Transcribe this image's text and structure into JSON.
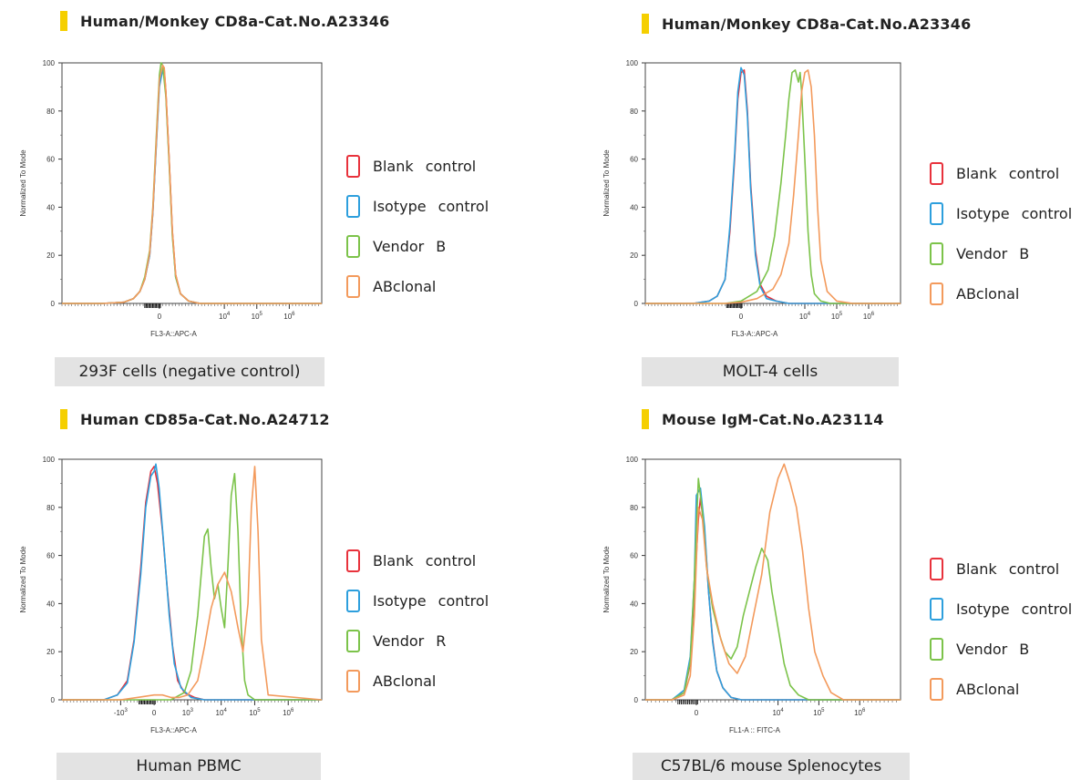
{
  "panels": [
    {
      "title": "Human/Monkey CD8a-Cat.No.A23346",
      "caption": "293F cells (negative control)",
      "legend": [
        {
          "label": "Blank  control",
          "color": "#e8323c"
        },
        {
          "label": "Isotype  control",
          "color": "#2d9fdd"
        },
        {
          "label": "Vendor B",
          "color": "#7cc34a"
        },
        {
          "label": "ABclonal",
          "color": "#f39a5c"
        }
      ]
    },
    {
      "title": "Human/Monkey CD8a-Cat.No.A23346",
      "caption": "MOLT-4 cells",
      "legend": [
        {
          "label": "Blank  control",
          "color": "#e8323c"
        },
        {
          "label": "Isotype  control",
          "color": "#2d9fdd"
        },
        {
          "label": "Vendor B",
          "color": "#7cc34a"
        },
        {
          "label": "ABclonal",
          "color": "#f39a5c"
        }
      ]
    },
    {
      "title": "Human CD85a-Cat.No.A24712",
      "caption": "Human PBMC",
      "legend": [
        {
          "label": "Blank  control",
          "color": "#e8323c"
        },
        {
          "label": "Isotype  control",
          "color": "#2d9fdd"
        },
        {
          "label": "Vendor R",
          "color": "#7cc34a"
        },
        {
          "label": "ABclonal",
          "color": "#f39a5c"
        }
      ]
    },
    {
      "title": "Mouse IgM-Cat.No.A23114",
      "caption": "C57BL/6 mouse Splenocytes",
      "legend": [
        {
          "label": "Blank  control",
          "color": "#e8323c"
        },
        {
          "label": "Isotype  control",
          "color": "#2d9fdd"
        },
        {
          "label": "Vendor B",
          "color": "#7cc34a"
        },
        {
          "label": "ABclonal",
          "color": "#f39a5c"
        }
      ]
    }
  ],
  "chart_data": [
    {
      "type": "line",
      "xlabel": "FL3-A::APC-A",
      "ylabel": "Normalized To Mode",
      "ylim": [
        0,
        100
      ],
      "xlim": [
        -0.6,
        1.0
      ],
      "xticks": [
        {
          "pos": 0,
          "label": "0"
        },
        {
          "pos": 0.4,
          "label": "10^4"
        },
        {
          "pos": 0.6,
          "label": "10^5"
        },
        {
          "pos": 0.8,
          "label": "10^6"
        }
      ],
      "yticks": [
        0,
        20,
        40,
        60,
        80,
        100
      ],
      "series": [
        {
          "color": "#e8323c",
          "x": [
            -0.6,
            -0.35,
            -0.22,
            -0.16,
            -0.12,
            -0.09,
            -0.06,
            -0.04,
            -0.02,
            0,
            0.02,
            0.03,
            0.04,
            0.06,
            0.08,
            0.1,
            0.13,
            0.18,
            0.25,
            1.0
          ],
          "y": [
            0,
            0,
            0.5,
            2,
            5,
            10,
            20,
            38,
            65,
            92,
            98,
            97,
            88,
            60,
            30,
            12,
            4,
            1,
            0,
            0
          ]
        },
        {
          "color": "#2d9fdd",
          "x": [
            -0.6,
            -0.35,
            -0.22,
            -0.16,
            -0.12,
            -0.09,
            -0.06,
            -0.04,
            -0.02,
            0,
            0.02,
            0.03,
            0.04,
            0.06,
            0.08,
            0.1,
            0.13,
            0.18,
            0.25,
            1.0
          ],
          "y": [
            0,
            0,
            0.5,
            2,
            5,
            10,
            20,
            38,
            64,
            90,
            97,
            96,
            87,
            59,
            29,
            11,
            4,
            1,
            0,
            0
          ]
        },
        {
          "color": "#7cc34a",
          "x": [
            -0.6,
            -0.35,
            -0.22,
            -0.16,
            -0.12,
            -0.09,
            -0.06,
            -0.04,
            -0.02,
            0,
            0.01,
            0.02,
            0.04,
            0.06,
            0.08,
            0.1,
            0.13,
            0.18,
            0.25,
            1.0
          ],
          "y": [
            0,
            0,
            0.5,
            2,
            5,
            11,
            22,
            40,
            68,
            95,
            100,
            99,
            86,
            58,
            28,
            11,
            4,
            1,
            0,
            0
          ]
        },
        {
          "color": "#f39a5c",
          "x": [
            -0.6,
            -0.35,
            -0.22,
            -0.16,
            -0.12,
            -0.09,
            -0.06,
            -0.04,
            -0.02,
            0,
            0.02,
            0.03,
            0.04,
            0.06,
            0.08,
            0.1,
            0.13,
            0.18,
            0.25,
            1.0
          ],
          "y": [
            0,
            0,
            0.5,
            2,
            5,
            10,
            21,
            39,
            66,
            93,
            99,
            98,
            88,
            60,
            30,
            12,
            4,
            1,
            0,
            0
          ]
        }
      ]
    },
    {
      "type": "line",
      "xlabel": "FL3-A::APC-A",
      "ylabel": "Normalized To Mode",
      "ylim": [
        0,
        100
      ],
      "xlim": [
        -0.6,
        1.0
      ],
      "xticks": [
        {
          "pos": 0,
          "label": "0"
        },
        {
          "pos": 0.4,
          "label": "10^4"
        },
        {
          "pos": 0.6,
          "label": "10^5"
        },
        {
          "pos": 0.8,
          "label": "10^6"
        }
      ],
      "yticks": [
        0,
        20,
        40,
        60,
        80,
        100
      ],
      "series": [
        {
          "color": "#e8323c",
          "x": [
            -0.6,
            -0.3,
            -0.2,
            -0.15,
            -0.1,
            -0.07,
            -0.04,
            -0.02,
            0,
            0.02,
            0.04,
            0.06,
            0.09,
            0.12,
            0.16,
            0.22,
            0.3,
            1.0
          ],
          "y": [
            0,
            0,
            1,
            3,
            10,
            30,
            60,
            85,
            96,
            97,
            80,
            50,
            22,
            8,
            3,
            1,
            0,
            0
          ]
        },
        {
          "color": "#2d9fdd",
          "x": [
            -0.6,
            -0.3,
            -0.2,
            -0.15,
            -0.1,
            -0.07,
            -0.04,
            -0.02,
            0,
            0.02,
            0.04,
            0.06,
            0.09,
            0.12,
            0.16,
            0.22,
            0.3,
            1.0
          ],
          "y": [
            0,
            0,
            1,
            3,
            10,
            32,
            62,
            88,
            98,
            95,
            78,
            48,
            20,
            7,
            2,
            1,
            0,
            0
          ]
        },
        {
          "color": "#7cc34a",
          "x": [
            -0.6,
            -0.1,
            0,
            0.1,
            0.17,
            0.21,
            0.25,
            0.28,
            0.3,
            0.32,
            0.34,
            0.36,
            0.37,
            0.38,
            0.4,
            0.42,
            0.44,
            0.46,
            0.5,
            0.56,
            1.0
          ],
          "y": [
            0,
            0,
            1,
            5,
            14,
            28,
            50,
            70,
            85,
            96,
            97,
            92,
            96,
            88,
            60,
            30,
            12,
            4,
            1,
            0,
            0
          ]
        },
        {
          "color": "#f39a5c",
          "x": [
            -0.6,
            -0.1,
            0,
            0.1,
            0.2,
            0.25,
            0.3,
            0.33,
            0.36,
            0.38,
            0.4,
            0.42,
            0.44,
            0.46,
            0.48,
            0.5,
            0.54,
            0.6,
            0.7,
            1.0
          ],
          "y": [
            0,
            0,
            0.5,
            2,
            6,
            12,
            25,
            45,
            70,
            88,
            96,
            97,
            90,
            70,
            40,
            18,
            5,
            1,
            0,
            0
          ]
        }
      ]
    },
    {
      "type": "line",
      "xlabel": "FL3-A::APC-A",
      "ylabel": "Normalized To Mode",
      "ylim": [
        0,
        100
      ],
      "xlim": [
        -0.55,
        1.0
      ],
      "xticks": [
        {
          "pos": -0.2,
          "label": "-10^3"
        },
        {
          "pos": 0,
          "label": "0"
        },
        {
          "pos": 0.2,
          "label": "10^3"
        },
        {
          "pos": 0.4,
          "label": "10^4"
        },
        {
          "pos": 0.6,
          "label": "10^5"
        },
        {
          "pos": 0.8,
          "label": "10^6"
        }
      ],
      "yticks": [
        0,
        20,
        40,
        60,
        80,
        100
      ],
      "series": [
        {
          "color": "#e8323c",
          "x": [
            -0.55,
            -0.3,
            -0.22,
            -0.16,
            -0.12,
            -0.08,
            -0.05,
            -0.02,
            0,
            0.02,
            0.05,
            0.08,
            0.11,
            0.14,
            0.18,
            0.24,
            0.3,
            1.0
          ],
          "y": [
            0,
            0,
            2,
            8,
            25,
            55,
            82,
            95,
            97,
            90,
            70,
            45,
            22,
            8,
            3,
            1,
            0,
            0
          ]
        },
        {
          "color": "#2d9fdd",
          "x": [
            -0.55,
            -0.3,
            -0.22,
            -0.16,
            -0.12,
            -0.08,
            -0.05,
            -0.02,
            0,
            0.01,
            0.03,
            0.06,
            0.09,
            0.12,
            0.16,
            0.22,
            0.3,
            1.0
          ],
          "y": [
            0,
            0,
            2,
            7,
            24,
            52,
            80,
            93,
            95,
            98,
            88,
            62,
            35,
            15,
            5,
            1,
            0,
            0
          ]
        },
        {
          "color": "#7cc34a",
          "x": [
            -0.55,
            0.1,
            0.18,
            0.22,
            0.26,
            0.3,
            0.32,
            0.34,
            0.36,
            0.38,
            0.4,
            0.42,
            0.44,
            0.46,
            0.48,
            0.5,
            0.52,
            0.54,
            0.56,
            0.6,
            1.0
          ],
          "y": [
            0,
            0,
            3,
            12,
            35,
            68,
            71,
            55,
            42,
            48,
            38,
            30,
            55,
            85,
            94,
            70,
            30,
            8,
            2,
            0,
            0
          ]
        },
        {
          "color": "#f39a5c",
          "x": [
            -0.55,
            -0.2,
            -0.1,
            0,
            0.05,
            0.1,
            0.15,
            0.2,
            0.26,
            0.3,
            0.34,
            0.38,
            0.42,
            0.46,
            0.5,
            0.53,
            0.56,
            0.58,
            0.6,
            0.62,
            0.64,
            0.68,
            1.0
          ],
          "y": [
            0,
            0,
            1,
            2,
            2,
            1,
            1,
            2,
            8,
            22,
            38,
            48,
            53,
            45,
            30,
            20,
            40,
            80,
            97,
            70,
            25,
            2,
            0
          ]
        }
      ]
    },
    {
      "type": "line",
      "xlabel": "FL1-A :: FITC-A",
      "ylabel": "Normalized To Mode",
      "ylim": [
        0,
        100
      ],
      "xlim": [
        -0.25,
        1.0
      ],
      "xticks": [
        {
          "pos": 0,
          "label": "0"
        },
        {
          "pos": 0.4,
          "label": "10^4"
        },
        {
          "pos": 0.6,
          "label": "10^5"
        },
        {
          "pos": 0.8,
          "label": "10^6"
        }
      ],
      "yticks": [
        0,
        20,
        40,
        60,
        80,
        100
      ],
      "series": [
        {
          "color": "#e8323c",
          "x": [
            -0.25,
            -0.12,
            -0.06,
            -0.03,
            -0.01,
            0.01,
            0.02,
            0.04,
            0.06,
            0.08,
            0.1,
            0.13,
            0.17,
            0.22,
            1.0
          ],
          "y": [
            0,
            0,
            3,
            15,
            45,
            75,
            84,
            70,
            45,
            25,
            12,
            5,
            1,
            0,
            0
          ]
        },
        {
          "color": "#2d9fdd",
          "x": [
            -0.25,
            -0.12,
            -0.06,
            -0.03,
            -0.01,
            0,
            0.02,
            0.04,
            0.06,
            0.08,
            0.1,
            0.13,
            0.17,
            0.22,
            1.0
          ],
          "y": [
            0,
            0,
            4,
            18,
            50,
            85,
            88,
            72,
            45,
            24,
            12,
            5,
            1,
            0,
            0
          ]
        },
        {
          "color": "#7cc34a",
          "x": [
            -0.25,
            -0.12,
            -0.06,
            -0.03,
            -0.01,
            0.01,
            0.03,
            0.05,
            0.08,
            0.11,
            0.14,
            0.17,
            0.2,
            0.23,
            0.26,
            0.29,
            0.32,
            0.35,
            0.37,
            0.4,
            0.43,
            0.46,
            0.5,
            0.55,
            1.0
          ],
          "y": [
            0,
            0,
            3,
            16,
            50,
            92,
            78,
            55,
            38,
            28,
            20,
            17,
            22,
            35,
            45,
            55,
            63,
            58,
            45,
            30,
            15,
            6,
            2,
            0,
            0
          ]
        },
        {
          "color": "#f39a5c",
          "x": [
            -0.25,
            -0.12,
            -0.06,
            -0.03,
            -0.01,
            0.01,
            0.03,
            0.05,
            0.08,
            0.12,
            0.16,
            0.2,
            0.24,
            0.28,
            0.32,
            0.36,
            0.4,
            0.43,
            0.46,
            0.49,
            0.52,
            0.55,
            0.58,
            0.62,
            0.66,
            0.72,
            1.0
          ],
          "y": [
            0,
            0,
            2,
            10,
            35,
            80,
            75,
            55,
            40,
            25,
            15,
            11,
            18,
            35,
            52,
            78,
            92,
            98,
            90,
            80,
            62,
            38,
            20,
            10,
            3,
            0,
            0
          ]
        }
      ]
    }
  ]
}
